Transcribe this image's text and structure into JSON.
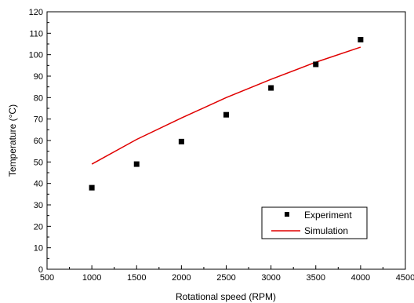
{
  "chart_data": {
    "type": "scatter",
    "xlabel": "Rotational speed (RPM)",
    "ylabel": "Temperature (°C)",
    "xlim": [
      500,
      4500
    ],
    "ylim": [
      0,
      120
    ],
    "x_ticks": [
      500,
      1000,
      1500,
      2000,
      2500,
      3000,
      3500,
      4000,
      4500
    ],
    "y_ticks": [
      0,
      10,
      20,
      30,
      40,
      50,
      60,
      70,
      80,
      90,
      100,
      110,
      120
    ],
    "grid": false,
    "legend_position": "bottom-right",
    "series": [
      {
        "name": "Experiment",
        "kind": "scatter",
        "marker": "square",
        "color": "#000000",
        "x": [
          1000,
          1500,
          2000,
          2500,
          3000,
          3500,
          4000
        ],
        "y": [
          38,
          49,
          59.5,
          72,
          84.5,
          95.5,
          107
        ]
      },
      {
        "name": "Simulation",
        "kind": "line",
        "color": "#e00000",
        "x": [
          1000,
          1500,
          2000,
          2500,
          3000,
          3500,
          4000
        ],
        "y": [
          49,
          60.5,
          70.5,
          80,
          88.5,
          96.5,
          103.5
        ]
      }
    ]
  }
}
